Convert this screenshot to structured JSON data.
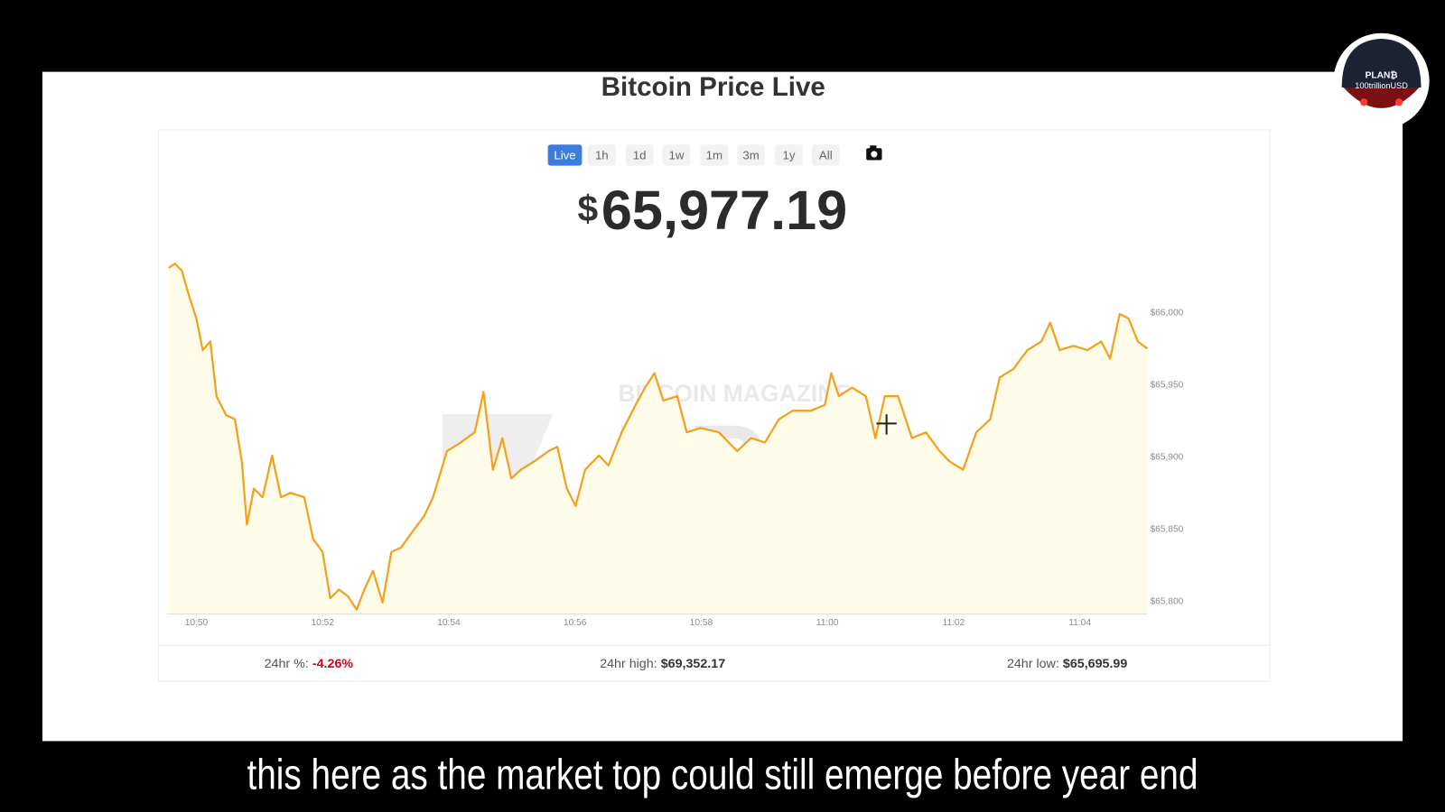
{
  "header": {
    "title": "Bitcoin Price Live"
  },
  "buttons": [
    {
      "label": "Live",
      "active": true
    },
    {
      "label": "1h",
      "active": false
    },
    {
      "label": "1d",
      "active": false
    },
    {
      "label": "1w",
      "active": false
    },
    {
      "label": "1m",
      "active": false
    },
    {
      "label": "3m",
      "active": false
    },
    {
      "label": "1y",
      "active": false
    },
    {
      "label": "All",
      "active": false
    }
  ],
  "price": {
    "currency": "$",
    "value": "65,977.19"
  },
  "watermark": {
    "brand": "BITCOIN MAGAZINE",
    "product": "PRO"
  },
  "chart_data": {
    "type": "line",
    "color": "#f0a21f",
    "fill": "#fffbe9",
    "grid": false,
    "xlim": [
      649.56,
      665.07
    ],
    "xticks": [
      {
        "value": 650,
        "label": "10:50"
      },
      {
        "value": 652,
        "label": "10:52"
      },
      {
        "value": 654,
        "label": "10:54"
      },
      {
        "value": 656,
        "label": "10:56"
      },
      {
        "value": 658,
        "label": "10:58"
      },
      {
        "value": 660,
        "label": "11:00"
      },
      {
        "value": 662,
        "label": "11:02"
      },
      {
        "value": 664,
        "label": "11:04"
      }
    ],
    "ylim": [
      65791,
      66038
    ],
    "yticks": [
      {
        "value": 65800,
        "label": "$65,800"
      },
      {
        "value": 65850,
        "label": "$65,850"
      },
      {
        "value": 65900,
        "label": "$65,900"
      },
      {
        "value": 65950,
        "label": "$65,950"
      },
      {
        "value": 66000,
        "label": "$66,000"
      }
    ],
    "x": [
      649.56,
      649.66,
      649.77,
      649.88,
      650,
      650.1,
      650.22,
      650.32,
      650.47,
      650.61,
      650.72,
      650.8,
      650.91,
      651.05,
      651.2,
      651.34,
      651.49,
      651.71,
      651.85,
      652,
      652.12,
      652.26,
      652.41,
      652.54,
      652.66,
      652.8,
      652.95,
      653.09,
      653.24,
      653.39,
      653.61,
      653.75,
      653.97,
      654.19,
      654.41,
      654.55,
      654.7,
      654.85,
      654.99,
      655.14,
      655.36,
      655.58,
      655.72,
      655.87,
      656.01,
      656.16,
      656.38,
      656.53,
      656.74,
      656.96,
      657.11,
      657.26,
      657.4,
      657.62,
      657.77,
      657.99,
      658.28,
      658.57,
      658.79,
      659.01,
      659.23,
      659.45,
      659.74,
      659.96,
      660.06,
      660.18,
      660.39,
      660.61,
      660.76,
      660.91,
      661.12,
      661.34,
      661.56,
      661.78,
      661.93,
      662.15,
      662.36,
      662.58,
      662.73,
      662.95,
      663.17,
      663.39,
      663.53,
      663.68,
      663.9,
      664.12,
      664.34,
      664.48,
      664.63,
      664.77,
      664.92,
      665.07
    ],
    "values": [
      66031,
      66034,
      66029,
      66012,
      65996,
      65974,
      65980,
      65942,
      65929,
      65926,
      65897,
      65853,
      65878,
      65872,
      65901,
      65872,
      65875,
      65872,
      65843,
      65834,
      65802,
      65808,
      65803,
      65794,
      65808,
      65821,
      65799,
      65834,
      65837,
      65846,
      65859,
      65872,
      65904,
      65910,
      65917,
      65945,
      65891,
      65913,
      65885,
      65891,
      65897,
      65904,
      65907,
      65878,
      65866,
      65891,
      65901,
      65894,
      65917,
      65936,
      65948,
      65958,
      65939,
      65942,
      65917,
      65920,
      65917,
      65904,
      65913,
      65910,
      65926,
      65932,
      65932,
      65936,
      65958,
      65942,
      65948,
      65942,
      65913,
      65942,
      65942,
      65913,
      65917,
      65904,
      65897,
      65891,
      65917,
      65926,
      65955,
      65961,
      65974,
      65980,
      65993,
      65974,
      65977,
      65974,
      65980,
      65968,
      65999,
      65996,
      65980,
      65975
    ]
  },
  "stats": [
    {
      "label": "24hr %:",
      "value": "-4.26%",
      "color": "#d0021b"
    },
    {
      "label": "24hr high:",
      "value": "$69,352.17",
      "color": "#333333"
    },
    {
      "label": "24hr low:",
      "value": "$65,695.99",
      "color": "#333333"
    }
  ],
  "logo": {
    "title": "PLAN₿",
    "subtitle": "100trillionUSD"
  },
  "subtitle": "this here as the market top could still emerge before year end"
}
